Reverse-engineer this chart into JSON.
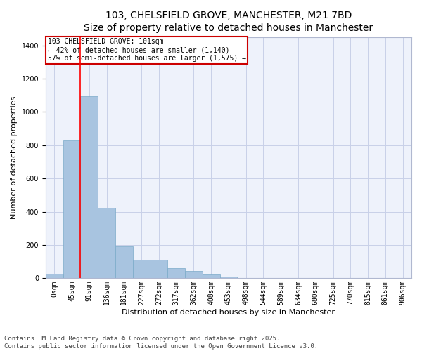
{
  "title_line1": "103, CHELSFIELD GROVE, MANCHESTER, M21 7BD",
  "title_line2": "Size of property relative to detached houses in Manchester",
  "xlabel": "Distribution of detached houses by size in Manchester",
  "ylabel": "Number of detached properties",
  "annotation_line1": "103 CHELSFIELD GROVE: 101sqm",
  "annotation_line2": "← 42% of detached houses are smaller (1,140)",
  "annotation_line3": "57% of semi-detached houses are larger (1,575) →",
  "footer_line1": "Contains HM Land Registry data © Crown copyright and database right 2025.",
  "footer_line2": "Contains public sector information licensed under the Open Government Licence v3.0.",
  "bin_labels": [
    "0sqm",
    "45sqm",
    "91sqm",
    "136sqm",
    "181sqm",
    "227sqm",
    "272sqm",
    "317sqm",
    "362sqm",
    "408sqm",
    "453sqm",
    "498sqm",
    "544sqm",
    "589sqm",
    "634sqm",
    "680sqm",
    "725sqm",
    "770sqm",
    "815sqm",
    "861sqm",
    "906sqm"
  ],
  "bar_values": [
    28,
    830,
    1095,
    425,
    190,
    110,
    110,
    62,
    42,
    22,
    10,
    0,
    0,
    0,
    0,
    0,
    0,
    0,
    0,
    0
  ],
  "bar_color": "#a8c4e0",
  "bar_edge_color": "#7aaac8",
  "red_line_x": 2,
  "ylim": [
    0,
    1450
  ],
  "yticks": [
    0,
    200,
    400,
    600,
    800,
    1000,
    1200,
    1400
  ],
  "bg_color": "#eef2fb",
  "grid_color": "#c8d0e8",
  "annotation_box_color": "#cc0000",
  "title_fontsize": 10,
  "subtitle_fontsize": 9,
  "axis_label_fontsize": 8,
  "tick_fontsize": 7,
  "footer_fontsize": 6.5
}
